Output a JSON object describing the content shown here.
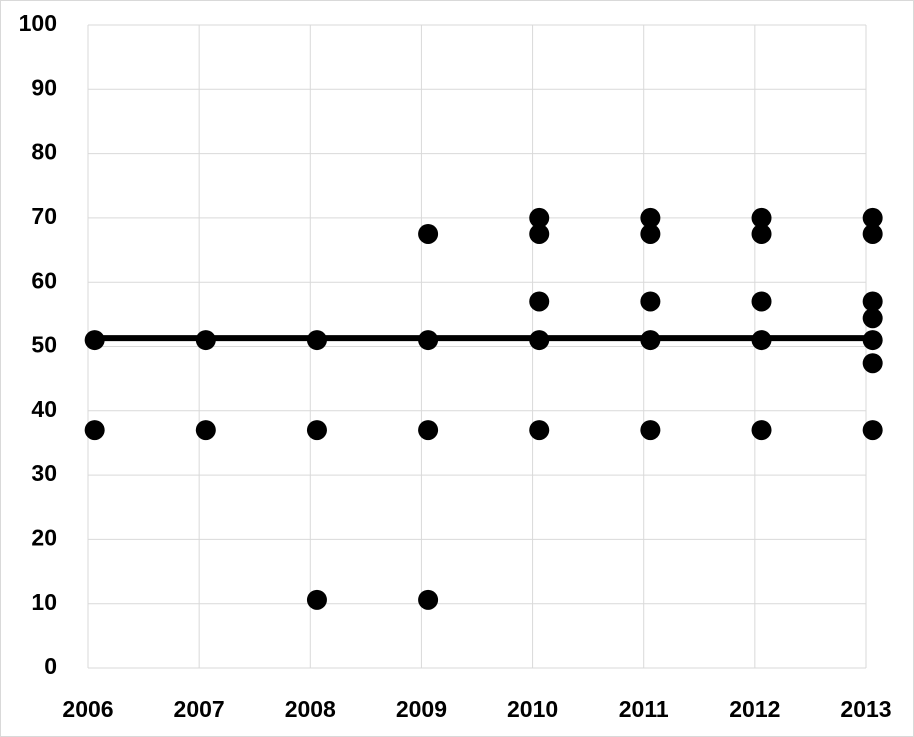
{
  "chart_data": {
    "type": "scatter",
    "xlim": [
      2006,
      2013
    ],
    "xticks": [
      2006,
      2007,
      2008,
      2009,
      2010,
      2011,
      2012,
      2013
    ],
    "ylim": [
      0,
      100
    ],
    "yticks": [
      0,
      10,
      20,
      30,
      40,
      50,
      60,
      70,
      80,
      90,
      100
    ],
    "grid": true,
    "series": [
      {
        "type": "scatter",
        "color": "#000000",
        "x": [
          2006.06,
          2006.06,
          2007.06,
          2007.06,
          2008.06,
          2008.06,
          2008.06,
          2009.06,
          2009.06,
          2009.06,
          2009.06,
          2010.06,
          2010.06,
          2010.06,
          2010.06,
          2010.06,
          2011.06,
          2011.06,
          2011.06,
          2011.06,
          2011.06,
          2012.06,
          2012.06,
          2012.06,
          2012.06,
          2012.06,
          2013.06,
          2013.06,
          2013.06,
          2013.06,
          2013.06,
          2013.06,
          2013.06
        ],
        "values": [
          51,
          37,
          51,
          37,
          51,
          37,
          10.6,
          67.5,
          51,
          37,
          10.6,
          70,
          67.5,
          57,
          51,
          37,
          70,
          67.5,
          57,
          51,
          37,
          70,
          67.5,
          57,
          51,
          37,
          70,
          67.5,
          57,
          54.4,
          51,
          47.4,
          37
        ]
      },
      {
        "type": "line",
        "color": "#000000",
        "x": [
          2006,
          2013
        ],
        "values": [
          51.3,
          51.3
        ]
      }
    ]
  }
}
